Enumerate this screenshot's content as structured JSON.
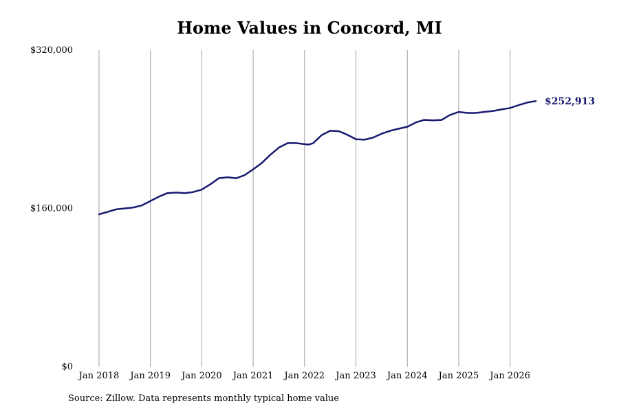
{
  "chart_data": {
    "type": "line",
    "title": "Home Values in Concord, MI",
    "source": "Source: Zillow. Data represents monthly typical home value",
    "xlabel": "",
    "ylabel": "",
    "ylim": [
      0,
      320000
    ],
    "yticks": [
      0,
      160000,
      320000
    ],
    "ytick_labels": [
      "$0",
      "$160,000",
      "$320,000"
    ],
    "xticks": [
      2018,
      2019,
      2020,
      2021,
      2022,
      2023,
      2024,
      2025,
      2026
    ],
    "xtick_labels": [
      "Jan 2018",
      "Jan 2019",
      "Jan 2020",
      "Jan 2021",
      "Jan 2022",
      "Jan 2023",
      "Jan 2024",
      "Jan 2025",
      "Jan 2026"
    ],
    "xlim": [
      2018,
      2026.5
    ],
    "grid": "vertical",
    "end_label": "$252,913",
    "line_color": "#191970",
    "series": [
      {
        "x": [
          2018.0,
          2018.083,
          2018.167,
          2018.25,
          2018.333,
          2018.417,
          2018.5,
          2018.583,
          2018.667,
          2018.75,
          2018.833,
          2018.917,
          2019.0,
          2019.083,
          2019.167,
          2019.25,
          2019.333,
          2019.417,
          2019.5,
          2019.583,
          2019.667,
          2019.75,
          2019.833,
          2019.917,
          2020.0,
          2020.083,
          2020.167,
          2020.25,
          2020.333,
          2020.417,
          2020.5,
          2020.583,
          2020.667,
          2020.75,
          2020.833,
          2020.917,
          2021.0,
          2021.083,
          2021.167,
          2021.25,
          2021.333,
          2021.417,
          2021.5,
          2021.583,
          2021.667,
          2021.75,
          2021.833,
          2021.917,
          2022.0,
          2022.083,
          2022.167,
          2022.25,
          2022.333,
          2022.417,
          2022.5,
          2022.583,
          2022.667,
          2022.75,
          2022.833,
          2022.917,
          2023.0,
          2023.083,
          2023.167,
          2023.25,
          2023.333,
          2023.417,
          2023.5,
          2023.583,
          2023.667,
          2023.75,
          2023.833,
          2023.917,
          2024.0,
          2024.083,
          2024.167,
          2024.25,
          2024.333,
          2024.417,
          2024.5,
          2024.583,
          2024.667,
          2024.75,
          2024.833,
          2024.917,
          2025.0,
          2025.083,
          2025.167,
          2025.25,
          2025.333,
          2025.417,
          2025.5,
          2025.583,
          2025.667,
          2025.75,
          2025.833,
          2025.917,
          2026.0,
          2026.083,
          2026.167,
          2026.25,
          2026.333,
          2026.417,
          2026.5
        ],
        "values": [
          154000,
          155000,
          157000,
          159000,
          159500,
          160000,
          161000,
          161500,
          162500,
          164500,
          167500,
          171000,
          174000,
          176500,
          177500,
          177500,
          177000,
          177000,
          178000,
          179000,
          181000,
          185500,
          190000,
          191000,
          190000,
          189500,
          191500,
          194500,
          198500,
          203000,
          208000,
          214000,
          220500,
          225500,
          228500,
          229500,
          228500,
          228000,
          228000,
          230500,
          236000,
          242000,
          245500,
          247000,
          246500,
          244000,
          242000,
          240000,
          237000,
          236500,
          237000,
          238500,
          240500,
          242500,
          244500,
          245500,
          247000,
          248000,
          249500,
          251000,
          252000,
          256500,
          258000,
          259000,
          258500,
          258000,
          258000,
          259000,
          259500,
          260000,
          260500,
          261000,
          262000,
          262000,
          263000,
          264000,
          265000,
          266500,
          268000,
          270000,
          271500,
          252913,
          252913,
          252913,
          252913,
          252913,
          252913,
          252913,
          252913,
          252913,
          252913,
          252913,
          252913,
          252913,
          252913,
          252913,
          252913,
          252913,
          252913,
          252913,
          252913,
          252913,
          252913
        ]
      }
    ]
  }
}
